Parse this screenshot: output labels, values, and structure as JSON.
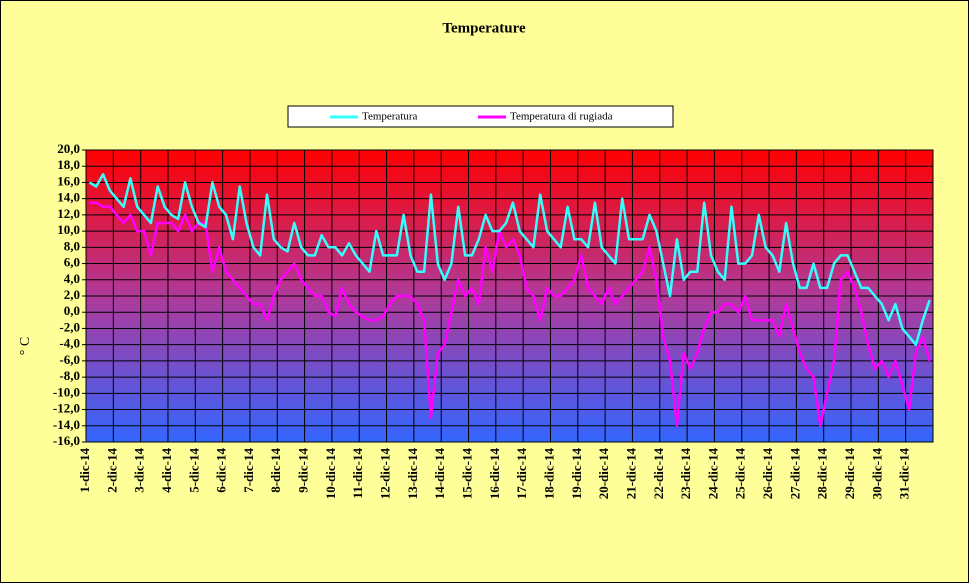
{
  "chart_data": {
    "type": "line",
    "title": "Temperature",
    "y_label": "° C",
    "legend": "top",
    "grid": true,
    "categories": [
      "1-dic-14",
      null,
      null,
      null,
      "2-dic-14",
      null,
      null,
      null,
      "3-dic-14",
      null,
      null,
      null,
      "4-dic-14",
      null,
      null,
      null,
      "5-dic-14",
      null,
      null,
      null,
      "6-dic-14",
      null,
      null,
      null,
      "7-dic-14",
      null,
      null,
      null,
      "8-dic-14",
      null,
      null,
      null,
      "9-dic-14",
      null,
      null,
      null,
      "10-dic-14",
      null,
      null,
      null,
      "11-dic-14",
      null,
      null,
      null,
      "12-dic-14",
      null,
      null,
      null,
      "13-dic-14",
      null,
      null,
      null,
      "14-dic-14",
      null,
      null,
      null,
      "15-dic-14",
      null,
      null,
      null,
      "16-dic-14",
      null,
      null,
      null,
      "17-dic-14",
      null,
      null,
      null,
      "18-dic-14",
      null,
      null,
      null,
      "19-dic-14",
      null,
      null,
      null,
      "20-dic-14",
      null,
      null,
      null,
      "21-dic-14",
      null,
      null,
      null,
      "22-dic-14",
      null,
      null,
      null,
      "23-dic-14",
      null,
      null,
      null,
      "24-dic-14",
      null,
      null,
      null,
      "25-dic-14",
      null,
      null,
      null,
      "26-dic-14",
      null,
      null,
      null,
      "27-dic-14",
      null,
      null,
      null,
      "28-dic-14",
      null,
      null,
      null,
      "29-dic-14",
      null,
      null,
      null,
      "30-dic-14",
      null,
      null,
      null,
      "31-dic-14",
      null,
      null,
      null
    ],
    "series": [
      {
        "name": "Temperatura",
        "color": "#33ffff",
        "values": [
          16,
          15.5,
          17,
          15,
          14,
          13,
          16.5,
          13,
          12,
          11,
          15.5,
          13,
          12,
          11.5,
          16,
          13,
          11,
          10.5,
          16,
          13,
          12,
          9,
          15.5,
          11,
          8,
          7,
          14.5,
          9,
          8,
          7.5,
          11,
          8,
          7,
          7,
          9.5,
          8,
          8,
          7,
          8.5,
          7,
          6,
          5,
          10,
          7,
          7,
          7,
          12,
          7,
          5,
          5,
          14.5,
          6,
          4,
          6,
          13,
          7,
          7,
          9,
          12,
          10,
          10,
          11,
          13.5,
          10,
          9,
          8,
          14.5,
          10,
          9,
          8,
          13,
          9,
          9,
          8,
          13.5,
          8,
          7,
          6,
          14,
          9,
          9,
          9,
          12,
          10,
          6,
          2,
          9,
          4,
          5,
          5,
          13.5,
          7,
          5,
          4,
          13,
          6,
          6,
          7,
          12,
          8,
          7,
          5,
          11,
          6,
          3,
          3,
          6,
          3,
          3,
          6,
          7,
          7,
          5,
          3,
          3,
          2,
          1,
          -1,
          1,
          -2,
          -3,
          -4,
          -1,
          1.5
        ]
      },
      {
        "name": "Temperatura di rugiada",
        "color": "#ff00ff",
        "values": [
          13.5,
          13.5,
          13,
          13,
          12,
          11,
          12,
          10,
          10,
          7,
          11,
          11,
          11,
          10,
          12,
          10,
          11,
          11,
          5,
          8,
          5,
          4,
          3,
          2,
          1,
          1,
          -1,
          2,
          4,
          5,
          6,
          4,
          3,
          2,
          2,
          0,
          -0.5,
          3,
          1,
          0,
          -0.5,
          -1,
          -1,
          -0.5,
          1,
          2,
          2,
          2,
          1,
          -1,
          -13,
          -5,
          -4,
          0,
          4,
          2,
          3,
          1,
          8,
          5,
          10,
          8,
          9,
          7,
          3,
          2,
          -1,
          3,
          2,
          2,
          3,
          4,
          7,
          3,
          2,
          1,
          3,
          1,
          2,
          3,
          4,
          5,
          8,
          4,
          -3,
          -6,
          -14,
          -5,
          -7,
          -5,
          -2,
          0,
          0,
          1,
          1,
          0,
          2,
          -1,
          -1,
          -1,
          -1,
          -3,
          1,
          -2,
          -5,
          -7,
          -8,
          -14,
          -10,
          -6,
          4,
          5,
          3,
          0,
          -4,
          -7,
          -6,
          -8,
          -6,
          -9,
          -12,
          -5,
          -3,
          -6
        ]
      }
    ],
    "ylim": [
      -16,
      20
    ],
    "yticks": [
      {
        "value": -16,
        "label": "-16,0"
      },
      {
        "value": -14,
        "label": "-14,0"
      },
      {
        "value": -12,
        "label": "-12,0"
      },
      {
        "value": -10,
        "label": "-10,0"
      },
      {
        "value": -8,
        "label": "-8,0"
      },
      {
        "value": -6,
        "label": "-6,0"
      },
      {
        "value": -4,
        "label": "-4,0"
      },
      {
        "value": -2,
        "label": "-2,0"
      },
      {
        "value": 0,
        "label": "0,0"
      },
      {
        "value": 2,
        "label": "2,0"
      },
      {
        "value": 4,
        "label": "4,0"
      },
      {
        "value": 6,
        "label": "6,0"
      },
      {
        "value": 8,
        "label": "8,0"
      },
      {
        "value": 10,
        "label": "10,0"
      },
      {
        "value": 12,
        "label": "12,0"
      },
      {
        "value": 14,
        "label": "14,0"
      },
      {
        "value": 16,
        "label": "16,0"
      },
      {
        "value": 18,
        "label": "18,0"
      },
      {
        "value": 20,
        "label": "20,0"
      }
    ]
  }
}
